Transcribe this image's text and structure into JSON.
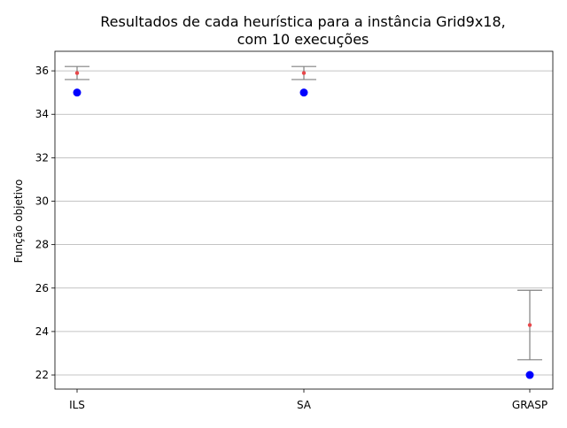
{
  "chart_data": {
    "type": "scatter",
    "title_line1": "Resultados de cada heurística para a instância Grid9x18,",
    "title_line2": "com 10 execuções",
    "xlabel": "",
    "ylabel": "Função objetivo",
    "categories": [
      "ILS",
      "SA",
      "GRASP"
    ],
    "yticks": [
      "22",
      "24",
      "26",
      "28",
      "30",
      "32",
      "34",
      "36"
    ],
    "ylim": [
      21.35,
      36.9
    ],
    "grid": "horizontal",
    "series": [
      {
        "values": [
          35,
          35,
          22
        ],
        "color": "#0000ff",
        "marker": "circle"
      },
      {
        "values": [
          35.9,
          35.9,
          24.3
        ],
        "error_low": [
          35.6,
          35.6,
          22.7
        ],
        "error_high": [
          36.2,
          36.2,
          25.9
        ],
        "color": "#e8474a",
        "marker": "small-dot",
        "error_color": "#808080"
      }
    ]
  }
}
